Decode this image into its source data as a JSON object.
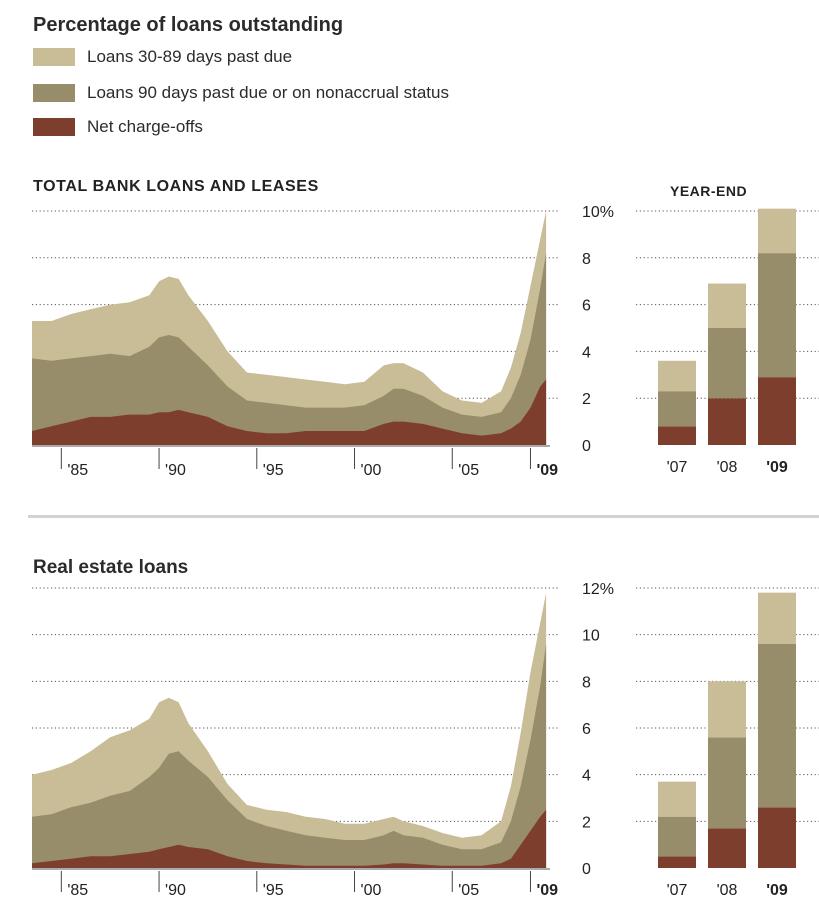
{
  "legend": {
    "title": "Percentage of loans outstanding",
    "items": [
      {
        "label": "Loans 30-89 days past due",
        "color": "#c9bd98"
      },
      {
        "label": "Loans 90 days past due or on nonaccrual status",
        "color": "#978d6a"
      },
      {
        "label": "Net charge-offs",
        "color": "#7e3e2e"
      }
    ]
  },
  "colors": {
    "early": "#c9bd98",
    "late": "#978d6a",
    "chargeoff": "#7e3e2e",
    "grid": "#555555",
    "divider": "#d2d2d2"
  },
  "chart_data": [
    {
      "type": "area",
      "title": "TOTAL BANK LOANS AND LEASES",
      "x_tick_labels": [
        "'85",
        "'90",
        "'95",
        "'00",
        "'05",
        "'09"
      ],
      "x_range": [
        1983,
        2009.5
      ],
      "ylim": [
        0,
        10
      ],
      "y_ticks": [
        "10%",
        "8",
        "6",
        "4",
        "2",
        "0"
      ],
      "grid": true,
      "x": [
        1983,
        1984,
        1985,
        1986,
        1987,
        1988,
        1989,
        1989.5,
        1990,
        1990.5,
        1991,
        1992,
        1993,
        1994,
        1995,
        1996,
        1997,
        1998,
        1999,
        2000,
        2001,
        2001.5,
        2002,
        2003,
        2004,
        2005,
        2006,
        2007,
        2007.5,
        2008,
        2008.5,
        2009,
        2009.3
      ],
      "series": [
        {
          "name": "Net charge-offs",
          "values": [
            0.6,
            0.8,
            1.0,
            1.2,
            1.2,
            1.3,
            1.3,
            1.4,
            1.4,
            1.5,
            1.4,
            1.2,
            0.8,
            0.6,
            0.5,
            0.5,
            0.6,
            0.6,
            0.6,
            0.6,
            0.9,
            1.0,
            1.0,
            0.9,
            0.7,
            0.5,
            0.4,
            0.5,
            0.7,
            1.0,
            1.6,
            2.5,
            2.8
          ]
        },
        {
          "name": "Loans 90 days past due or on nonaccrual status",
          "values": [
            3.7,
            3.6,
            3.7,
            3.8,
            3.9,
            3.8,
            4.2,
            4.6,
            4.7,
            4.6,
            4.2,
            3.4,
            2.5,
            1.9,
            1.8,
            1.7,
            1.6,
            1.6,
            1.6,
            1.7,
            2.1,
            2.4,
            2.4,
            2.1,
            1.6,
            1.3,
            1.2,
            1.4,
            2.0,
            3.0,
            4.5,
            6.7,
            8.2
          ]
        },
        {
          "name": "Loans 30-89 days past due",
          "values": [
            5.3,
            5.3,
            5.6,
            5.8,
            6.0,
            6.1,
            6.4,
            7.0,
            7.2,
            7.1,
            6.4,
            5.3,
            4.0,
            3.1,
            3.0,
            2.9,
            2.8,
            2.7,
            2.6,
            2.7,
            3.4,
            3.5,
            3.5,
            3.1,
            2.3,
            1.9,
            1.8,
            2.3,
            3.3,
            4.8,
            6.8,
            8.8,
            10.0
          ]
        }
      ]
    },
    {
      "type": "bar",
      "title": "YEAR-END",
      "categories": [
        "'07",
        "'08",
        "'09"
      ],
      "ylim": [
        0,
        10
      ],
      "series": [
        {
          "name": "Net charge-offs",
          "values": [
            0.8,
            2.0,
            2.9
          ]
        },
        {
          "name": "Loans 90 days past due or on nonaccrual status",
          "values": [
            2.3,
            5.0,
            8.2
          ]
        },
        {
          "name": "Loans 30-89 days past due",
          "values": [
            3.6,
            6.9,
            10.1
          ]
        }
      ]
    },
    {
      "type": "area",
      "title": "Real estate loans",
      "x_tick_labels": [
        "'85",
        "'90",
        "'95",
        "'00",
        "'05",
        "'09"
      ],
      "x_range": [
        1983,
        2009.5
      ],
      "ylim": [
        0,
        12
      ],
      "y_ticks": [
        "12%",
        "10",
        "8",
        "6",
        "4",
        "2",
        "0"
      ],
      "grid": true,
      "x": [
        1983,
        1984,
        1985,
        1986,
        1987,
        1988,
        1989,
        1989.5,
        1990,
        1990.5,
        1991,
        1992,
        1993,
        1994,
        1995,
        1996,
        1997,
        1998,
        1999,
        2000,
        2001,
        2001.5,
        2002,
        2003,
        2004,
        2005,
        2006,
        2007,
        2007.5,
        2008,
        2008.5,
        2009,
        2009.3
      ],
      "series": [
        {
          "name": "Net charge-offs",
          "values": [
            0.2,
            0.3,
            0.4,
            0.5,
            0.5,
            0.6,
            0.7,
            0.8,
            0.9,
            1.0,
            0.9,
            0.8,
            0.5,
            0.3,
            0.2,
            0.15,
            0.1,
            0.1,
            0.1,
            0.1,
            0.15,
            0.2,
            0.2,
            0.15,
            0.1,
            0.1,
            0.1,
            0.2,
            0.4,
            1.0,
            1.6,
            2.2,
            2.5
          ]
        },
        {
          "name": "Loans 90 days past due or on nonaccrual status",
          "values": [
            2.2,
            2.3,
            2.6,
            2.8,
            3.1,
            3.3,
            3.9,
            4.3,
            4.9,
            5.0,
            4.6,
            3.9,
            2.9,
            2.1,
            1.8,
            1.6,
            1.4,
            1.3,
            1.2,
            1.2,
            1.4,
            1.6,
            1.4,
            1.3,
            1.0,
            0.8,
            0.8,
            1.1,
            2.0,
            3.5,
            5.5,
            7.8,
            9.6
          ]
        },
        {
          "name": "Loans 30-89 days past due",
          "values": [
            4.0,
            4.2,
            4.5,
            5.0,
            5.6,
            5.9,
            6.4,
            7.1,
            7.3,
            7.1,
            6.2,
            5.0,
            3.6,
            2.7,
            2.5,
            2.4,
            2.2,
            2.1,
            1.9,
            1.9,
            2.1,
            2.2,
            2.0,
            1.8,
            1.5,
            1.3,
            1.4,
            2.0,
            3.5,
            5.8,
            8.4,
            10.5,
            11.8
          ]
        }
      ]
    },
    {
      "type": "bar",
      "title": "",
      "categories": [
        "'07",
        "'08",
        "'09"
      ],
      "ylim": [
        0,
        12
      ],
      "series": [
        {
          "name": "Net charge-offs",
          "values": [
            0.5,
            1.7,
            2.6
          ]
        },
        {
          "name": "Loans 90 days past due or on nonaccrual status",
          "values": [
            2.2,
            5.6,
            9.6
          ]
        },
        {
          "name": "Loans 30-89 days past due",
          "values": [
            3.7,
            8.0,
            11.8
          ]
        }
      ]
    }
  ]
}
